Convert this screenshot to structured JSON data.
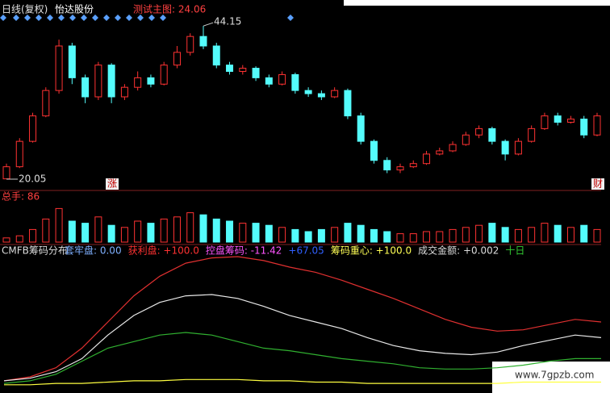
{
  "header": {
    "period": "日线(复权)",
    "stock": "怡达股份"
  },
  "watermark": "www.7gpzb.com",
  "chart_data": [
    {
      "type": "candlestick",
      "title": "测试主图: 24.06",
      "annotations": [
        "涨",
        "财"
      ],
      "ylim": [
        18.4,
        47.6
      ],
      "up_color": "#ff3232",
      "down_color": "#54fcfc",
      "open": [
        20.1,
        22,
        26,
        30,
        34,
        41,
        36,
        33,
        38,
        33,
        34.5,
        36,
        35,
        38,
        40,
        42.5,
        41,
        38,
        37,
        37.5,
        36,
        35,
        36.5,
        34,
        33.5,
        33,
        34,
        30,
        26,
        23,
        21.5,
        22,
        22.5,
        24,
        24.5,
        25.5,
        27,
        28,
        26,
        24,
        26,
        28,
        30,
        29,
        29.5,
        27
      ],
      "close": [
        22,
        26,
        30,
        34,
        41,
        36,
        33,
        38,
        33,
        34.5,
        36,
        35,
        38,
        40,
        42.5,
        41,
        38,
        37,
        37.5,
        36,
        35,
        36.5,
        34,
        33.5,
        33,
        34,
        30,
        26,
        23,
        21.5,
        22,
        22.5,
        24,
        24.5,
        25.5,
        27,
        28,
        26,
        24,
        26,
        28,
        30,
        29,
        29.5,
        27,
        30
      ],
      "high": [
        22.5,
        26.5,
        30.5,
        34.5,
        42,
        41.5,
        36.5,
        38.5,
        38.3,
        35,
        37,
        36.5,
        38.5,
        41,
        43,
        44.15,
        41.5,
        38.5,
        38,
        37.8,
        36.5,
        37,
        36.8,
        34.5,
        34,
        34.5,
        34.3,
        30.5,
        26.3,
        23.5,
        22.5,
        23,
        24.5,
        25,
        26,
        27.5,
        28.5,
        28.3,
        26.3,
        26.5,
        28.5,
        30.5,
        30.5,
        30,
        30,
        30.5
      ],
      "low": [
        20.05,
        21.8,
        25.8,
        29.8,
        33.5,
        35,
        32,
        32.5,
        32,
        32.5,
        34,
        34.5,
        34.8,
        37.5,
        39.5,
        40.5,
        37.5,
        36.5,
        36.5,
        35.5,
        34.5,
        34.8,
        33.5,
        33,
        32.5,
        32.8,
        29.5,
        25.5,
        22.5,
        21,
        21,
        21.8,
        22.3,
        23.8,
        24.3,
        25.3,
        26.5,
        25.5,
        23,
        23.8,
        25.8,
        27.8,
        28.5,
        28.8,
        26.5,
        26.8
      ]
    },
    {
      "type": "bar",
      "title": "总手: 86",
      "ylim": [
        0,
        100
      ],
      "values": [
        10,
        15,
        30,
        55,
        80,
        50,
        45,
        60,
        40,
        35,
        50,
        45,
        55,
        60,
        70,
        65,
        55,
        50,
        45,
        45,
        40,
        35,
        30,
        25,
        30,
        35,
        45,
        40,
        30,
        25,
        20,
        20,
        25,
        25,
        30,
        35,
        40,
        45,
        35,
        30,
        35,
        45,
        40,
        35,
        40,
        30
      ]
    },
    {
      "type": "line",
      "title": "CMFB筹码分布",
      "ylim": [
        0,
        100
      ],
      "indicators": [
        {
          "text": "套牢盘: 0.00",
          "color": "#7fb0ff"
        },
        {
          "text": "获利盘: +100.0",
          "color": "#ff3232"
        },
        {
          "text": "控盘筹码: -11.42",
          "color": "#ff55ff"
        },
        {
          "text": "+67.05",
          "color": "#3060ff"
        },
        {
          "text": "筹码重心: +100.0",
          "color": "#ffff55"
        },
        {
          "text": "成交金额: +0.002",
          "color": "#dddddd"
        },
        {
          "text": "十日",
          "color": "#33cc33"
        }
      ],
      "series": [
        {
          "color": "#e03030",
          "values": [
            5,
            8,
            15,
            30,
            50,
            70,
            85,
            95,
            99,
            100,
            97,
            92,
            88,
            82,
            75,
            68,
            60,
            52,
            46,
            43,
            44,
            48,
            52,
            50
          ]
        },
        {
          "color": "#e8e8e8",
          "values": [
            5,
            7,
            12,
            22,
            40,
            55,
            65,
            70,
            71,
            68,
            62,
            55,
            50,
            45,
            38,
            32,
            28,
            26,
            25,
            27,
            32,
            36,
            40,
            38
          ]
        },
        {
          "color": "#30b030",
          "values": [
            3,
            5,
            10,
            20,
            30,
            35,
            40,
            42,
            40,
            35,
            30,
            28,
            25,
            22,
            20,
            18,
            15,
            14,
            14,
            15,
            17,
            20,
            22,
            22
          ]
        },
        {
          "color": "#ffff40",
          "values": [
            2,
            2,
            3,
            3,
            4,
            5,
            5,
            6,
            6,
            6,
            5,
            5,
            4,
            4,
            3,
            3,
            3,
            3,
            3,
            3,
            4,
            4,
            4,
            4
          ]
        }
      ]
    }
  ]
}
